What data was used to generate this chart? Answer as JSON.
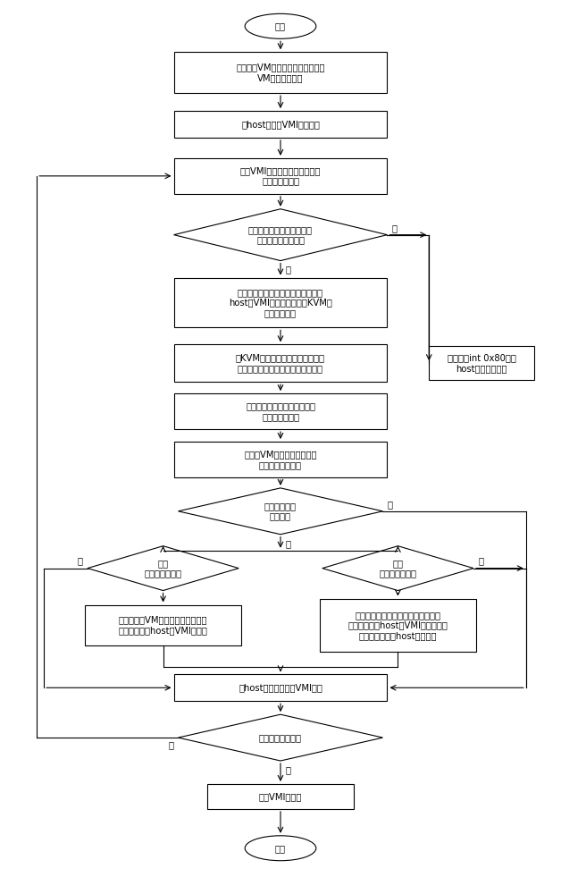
{
  "bg_color": "#ffffff",
  "ec": "#000000",
  "fc": "#ffffff",
  "lw": 0.8,
  "fs": 7.2,
  "arrow_color": "#000000",
  "start_label": "开始",
  "end_label": "结束",
  "box1_label": "选择目标VM，并选择和初始化目标\nVM中的辅助进程",
  "box2_label": "在host中执行VMI应用程序",
  "box3_label": "截获VMI程序的每个系统调用并\n获取系统调用号",
  "d1_label": "由系统调用号及重定向策略\n决定是否需要重定向",
  "box4_label": "将系统调用参数写入共享内存，暂停\nhost中VMI程序的执行，向KVM发\n出重定向请求",
  "box5_label": "在KVM中收到重定向请求，准备系\n统调用参数并调度辅助进程准备执行",
  "box6_label": "安全保护模块对辅助进程进行\n安全检查及保护",
  "box7_label": "在目标VM中，辅助进程执行\n重定向的系统调用",
  "d2_label": "执行结果是否\n更新数据",
  "d3_label": "是否\n更新内核层数据",
  "d4_label": "是否\n更新用户层数据",
  "box8_label": "直接对目标VM内核状态进行更新修\n改，之后恢复host中VMI的执行",
  "box9_label": "将执行结果写回共享内存中，并拷贝\n更新的数据到host中VMI程序的用户\n空间，并恢复在host中的执行",
  "box10_label": "在host中继续执行该VMI程序",
  "d5_label": "程序是否执行完成",
  "box11_label": "得出VMI的结果",
  "boxR_label": "程序执行int 0x80陷入\nhost内核空间执行",
  "label_shi": "是",
  "label_fou": "否"
}
